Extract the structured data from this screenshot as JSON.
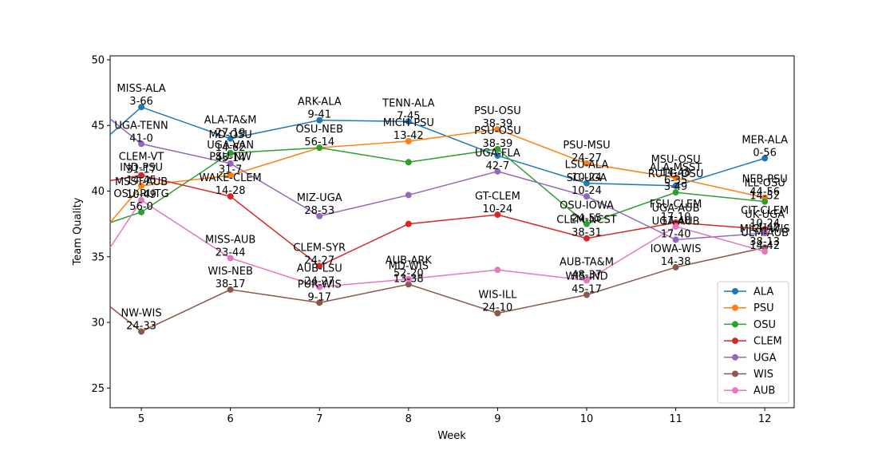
{
  "chart_data": {
    "type": "line",
    "title": "",
    "xlabel": "Week",
    "ylabel": "Team Quality",
    "xlim": [
      4.65,
      12.33
    ],
    "ylim": [
      23.5,
      50.3
    ],
    "xticks": [
      5,
      6,
      7,
      8,
      9,
      10,
      11,
      12
    ],
    "yticks": [
      25,
      30,
      35,
      40,
      45,
      50
    ],
    "grid": false,
    "legend_position": "lower-right",
    "series": [
      {
        "name": "ALA",
        "color": "#1f77b4",
        "x": [
          4.65,
          5,
          6,
          7,
          8,
          9,
          10,
          11,
          12
        ],
        "y": [
          44.3,
          46.4,
          44.0,
          45.4,
          45.3,
          42.7,
          40.6,
          40.4,
          42.5
        ],
        "labels": [
          null,
          "MISS-ALA\n3-66",
          null,
          "ARK-ALA\n9-41",
          "TENN-ALA\n7-45",
          null,
          "LSU-ALA\n10-24",
          "ALA-MSST\n6-35",
          "MER-ALA\n0-56"
        ]
      },
      {
        "name": "PSU",
        "color": "#ff7f0e",
        "x": [
          4.65,
          5,
          6,
          7,
          8,
          9,
          10,
          11,
          12
        ],
        "y": [
          37.6,
          40.4,
          41.2,
          43.3,
          43.8,
          44.7,
          42.1,
          41.0,
          39.5
        ],
        "labels": [
          null,
          "IND-PSU\n14-45",
          "PSU-NW\n31-7",
          null,
          "MICH-PSU\n13-42",
          "PSU-OSU\n38-39",
          "PSU-MSU\n24-27",
          "MSU-OSU\n14-48",
          "NEB-PSU\n44-56"
        ]
      },
      {
        "name": "OSU",
        "color": "#2ca02c",
        "x": [
          4.65,
          5,
          6,
          7,
          8,
          9,
          10,
          11,
          12
        ],
        "y": [
          37.6,
          38.4,
          42.9,
          43.3,
          42.2,
          43.2,
          37.5,
          39.9,
          39.2
        ],
        "labels": [
          null,
          "OSU-RUTG\n56-0",
          "MD-OSU\n14-62",
          "OSU-NEB\n56-14",
          null,
          "PSU-OSU\n38-39",
          "OSU-IOWA\n24-55",
          "RUTG-OSU\n3-49",
          "ILL-OSU\n14-52"
        ]
      },
      {
        "name": "CLEM",
        "color": "#d62728",
        "x": [
          4.65,
          5,
          6,
          7,
          8,
          9,
          10,
          11,
          12
        ],
        "y": [
          40.8,
          41.2,
          39.6,
          34.3,
          37.5,
          38.2,
          36.4,
          37.6,
          37.1
        ],
        "labels": [
          null,
          "CLEM-VT\n31-17",
          "WAKE-CLEM\n14-28",
          "CLEM-SYR\n24-27",
          null,
          "GT-CLEM\n10-24",
          "CLEM-NCST\n38-31",
          "FSU-CLEM\n17-10",
          "CIT-CLEM\n10-24"
        ]
      },
      {
        "name": "UGA",
        "color": "#9467bd",
        "x": [
          4.65,
          5,
          6,
          7,
          8,
          9,
          10,
          11,
          12
        ],
        "y": [
          45.5,
          43.6,
          42.1,
          38.1,
          39.7,
          41.5,
          39.6,
          36.3,
          36.8
        ],
        "labels": [
          null,
          "UGA-TENN\n41-0",
          "UGA-VAN\n45-14",
          "MIZ-UGA\n28-53",
          null,
          "UGA-FLA\n42-7",
          "SC-UGA\n10-24",
          "UGA-AUB\n17-40",
          "UK-UGA\n14-42"
        ]
      },
      {
        "name": "WIS",
        "color": "#8c564b",
        "x": [
          4.65,
          5,
          6,
          7,
          8,
          9,
          10,
          11,
          12
        ],
        "y": [
          31.2,
          29.3,
          32.5,
          31.5,
          32.9,
          30.7,
          32.1,
          34.2,
          35.7
        ],
        "labels": [
          null,
          "NW-WIS\n24-33",
          "WIS-NEB\n38-17",
          "PUR-WIS\n9-17",
          "MD-WIS\n13-38",
          "WIS-ILL\n24-10",
          "WIS-IND\n45-17",
          "IOWA-WIS\n14-38",
          "MICH-WIS\n38-13"
        ]
      },
      {
        "name": "AUB",
        "color": "#e377c2",
        "x": [
          4.65,
          5,
          6,
          7,
          8,
          9,
          10,
          11,
          12
        ],
        "y": [
          35.7,
          39.3,
          34.9,
          32.7,
          33.3,
          34.0,
          33.2,
          37.3,
          35.4
        ],
        "labels": [
          null,
          "MSST-AUB\n10-49",
          "MISS-AUB\n23-44",
          "AUB-LSU\n24-27",
          "AUB-ARK\n52-20",
          null,
          "AUB-TA&M\n48-37",
          "UGA-AUB\n17-40",
          "ULM-AUB\n14-42"
        ]
      }
    ],
    "annotations": [
      {
        "x": 6,
        "y": 44.0,
        "text": "ALA-TA&M\n27-19"
      }
    ]
  }
}
